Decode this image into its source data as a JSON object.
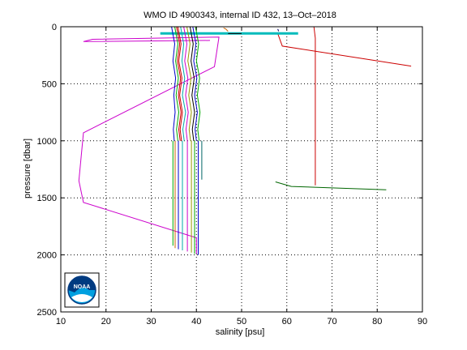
{
  "chart_data": {
    "type": "line",
    "title": "WMO ID 4900343, internal ID 432, 13–Oct–2018",
    "xlabel": "salinity [psu]",
    "ylabel": "pressure [dbar]",
    "xlim": [
      10,
      90
    ],
    "ylim": [
      0,
      2500
    ],
    "y_reversed": true,
    "grid": true,
    "x_ticks": [
      10,
      20,
      30,
      40,
      50,
      60,
      70,
      80,
      90
    ],
    "y_ticks": [
      0,
      500,
      1000,
      1500,
      2000,
      2500
    ],
    "logo": "NOAA",
    "series": [
      {
        "color": "#cc00cc",
        "x": [
          43,
          15,
          17,
          45,
          44,
          15,
          14,
          15,
          40,
          40
        ],
        "y": [
          120,
          130,
          110,
          90,
          350,
          930,
          1350,
          1540,
          1850,
          1990
        ]
      },
      {
        "color": "#cc0000",
        "x": [
          58,
          59,
          87.5
        ],
        "y": [
          60,
          170,
          345
        ]
      },
      {
        "color": "#cc0000",
        "x": [
          66,
          66.3,
          66.3
        ],
        "y": [
          0,
          100,
          1390
        ]
      },
      {
        "color": "#006600",
        "x": [
          57.5,
          61,
          82
        ],
        "y": [
          1360,
          1400,
          1430
        ]
      },
      {
        "color": "#00bbbb",
        "x": [
          32,
          62.5
        ],
        "y": [
          58,
          58
        ]
      },
      {
        "color": "#000000",
        "x": [
          47,
          50
        ],
        "y": [
          60,
          60
        ]
      },
      {
        "color": "#cc6600",
        "x": [
          46,
          46.5,
          47
        ],
        "y": [
          10,
          20,
          40
        ]
      },
      {
        "color": "#000066",
        "x": [
          58,
          58.2
        ],
        "y": [
          20,
          40
        ]
      },
      {
        "color": "#0000cc",
        "x": [
          34.5,
          35.2,
          34.8,
          35.4,
          35.0,
          35.3,
          34.9,
          35.1
        ],
        "y": [
          0,
          150,
          300,
          450,
          600,
          750,
          900,
          1000
        ]
      },
      {
        "color": "#00aa00",
        "x": [
          35.2,
          35.9,
          35.4,
          36.0,
          35.5,
          36.1,
          35.6,
          35.9
        ],
        "y": [
          0,
          150,
          300,
          450,
          600,
          750,
          900,
          1000
        ]
      },
      {
        "color": "#cc0000",
        "x": [
          35.9,
          36.6,
          36.1,
          36.8,
          36.3,
          36.9,
          36.4,
          36.7
        ],
        "y": [
          0,
          150,
          300,
          450,
          600,
          750,
          900,
          1000
        ]
      },
      {
        "color": "#00aaaa",
        "x": [
          36.5,
          37.2,
          36.8,
          37.4,
          36.9,
          37.6,
          37.0,
          37.3
        ],
        "y": [
          0,
          150,
          300,
          450,
          600,
          750,
          900,
          1000
        ]
      },
      {
        "color": "#cc00cc",
        "x": [
          37.2,
          37.9,
          37.4,
          38.1,
          37.6,
          38.2,
          37.7,
          38.0
        ],
        "y": [
          0,
          150,
          300,
          450,
          600,
          750,
          900,
          1000
        ]
      },
      {
        "color": "#999900",
        "x": [
          37.9,
          38.6,
          38.1,
          38.8,
          38.3,
          38.9,
          38.4,
          38.7
        ],
        "y": [
          0,
          150,
          300,
          450,
          600,
          750,
          900,
          1000
        ]
      },
      {
        "color": "#000000",
        "x": [
          38.6,
          39.3,
          38.8,
          39.5,
          39.0,
          39.6,
          39.1,
          39.4
        ],
        "y": [
          0,
          150,
          300,
          450,
          600,
          750,
          900,
          1000
        ]
      },
      {
        "color": "#0000cc",
        "x": [
          39.2,
          39.9,
          39.4,
          40.1,
          39.6,
          40.2,
          39.7,
          40.0
        ],
        "y": [
          0,
          150,
          300,
          450,
          600,
          750,
          900,
          1000
        ]
      },
      {
        "color": "#00aa00",
        "x": [
          39.8,
          40.5,
          40.0,
          40.7,
          40.2,
          40.8,
          40.3,
          40.6
        ],
        "y": [
          0,
          150,
          300,
          450,
          600,
          750,
          900,
          1000
        ]
      },
      {
        "color": "#cc0000",
        "x": [
          35.6,
          36.3,
          35.8,
          36.5,
          36.0,
          36.6,
          36.1,
          36.4
        ],
        "y": [
          0,
          150,
          300,
          450,
          600,
          750,
          900,
          1000
        ]
      },
      {
        "color": "#00aa00",
        "x": [
          34.8,
          34.8
        ],
        "y": [
          1000,
          1920
        ]
      },
      {
        "color": "#cc6600",
        "x": [
          35.3,
          35.3
        ],
        "y": [
          1000,
          1940
        ]
      },
      {
        "color": "#0000cc",
        "x": [
          36.0,
          36.0
        ],
        "y": [
          1000,
          1950
        ]
      },
      {
        "color": "#00aaaa",
        "x": [
          36.9,
          36.9
        ],
        "y": [
          1000,
          1960
        ]
      },
      {
        "color": "#cc00cc",
        "x": [
          38.0,
          38.0
        ],
        "y": [
          1000,
          1970
        ]
      },
      {
        "color": "#999900",
        "x": [
          38.9,
          38.9
        ],
        "y": [
          1000,
          1980
        ]
      },
      {
        "color": "#00aa00",
        "x": [
          39.6,
          39.6
        ],
        "y": [
          1000,
          1990
        ]
      },
      {
        "color": "#0000cc",
        "x": [
          40.4,
          40.4
        ],
        "y": [
          1000,
          2000
        ]
      },
      {
        "color": "#006666",
        "x": [
          41.2,
          41.2
        ],
        "y": [
          1000,
          1340
        ]
      }
    ]
  }
}
